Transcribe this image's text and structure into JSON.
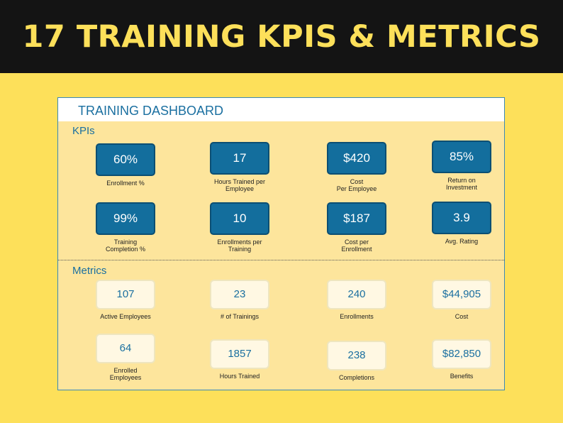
{
  "banner": {
    "title": "17 TRAINING KPIS & METRICS"
  },
  "dashboard": {
    "title": "TRAINING DASHBOARD",
    "kpis_label": "KPIs",
    "metrics_label": "Metrics",
    "kpis": [
      {
        "value": "60%",
        "label": "Enrollment %"
      },
      {
        "value": "17",
        "label": "Hours Trained per\nEmployee"
      },
      {
        "value": "$420",
        "label": "Cost\nPer Employee"
      },
      {
        "value": "85%",
        "label": "Return on\nInvestment"
      },
      {
        "value": "99%",
        "label": "Training\nCompletion %"
      },
      {
        "value": "10",
        "label": "Enrollments per\nTraining"
      },
      {
        "value": "$187",
        "label": "Cost per\nEnrollment"
      },
      {
        "value": "3.9",
        "label": "Avg. Rating"
      }
    ],
    "metrics": [
      {
        "value": "107",
        "label": "Active Employees"
      },
      {
        "value": "23",
        "label": "# of Trainings"
      },
      {
        "value": "240",
        "label": "Enrollments"
      },
      {
        "value": "$44,905",
        "label": "Cost"
      },
      {
        "value": "64",
        "label": "Enrolled\nEmployees"
      },
      {
        "value": "1857",
        "label": "Hours Trained"
      },
      {
        "value": "238",
        "label": "Completions"
      },
      {
        "value": "$82,850",
        "label": "Benefits"
      }
    ]
  },
  "colors": {
    "background": "#fde05a",
    "banner": "#141414",
    "banner_text": "#fde05a",
    "kpi_box": "#136e9d",
    "metric_box": "#fff8e3",
    "accent_text": "#1a6fa0"
  }
}
